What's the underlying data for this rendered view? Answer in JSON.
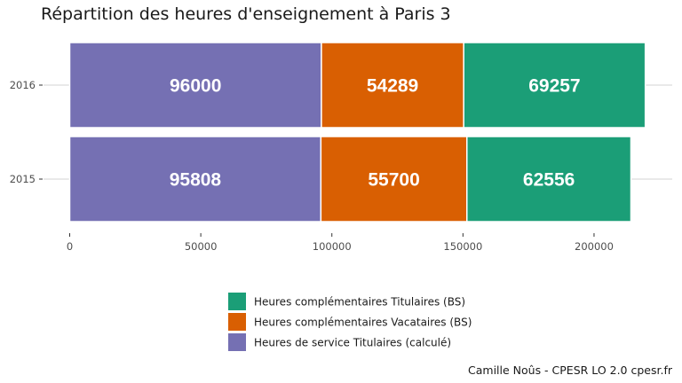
{
  "chart_data": {
    "type": "bar",
    "orientation": "horizontal",
    "stacked": true,
    "title": "Répartition des heures d'enseignement à Paris 3",
    "caption": "Camille Noûs - CPESR LO 2.0 cpesr.fr",
    "categories": [
      "2016",
      "2015"
    ],
    "xlim": [
      0,
      230000
    ],
    "x_ticks": [
      0,
      50000,
      100000,
      150000,
      200000
    ],
    "x_tick_labels": [
      "0",
      "50000",
      "100000",
      "150000",
      "200000"
    ],
    "grid": true,
    "legend_position": "bottom",
    "series": [
      {
        "name": "Heures de service Titulaires (calculé)",
        "color": "#7570B3",
        "values": [
          96000,
          95808
        ],
        "labels": [
          "96000",
          "95808"
        ]
      },
      {
        "name": "Heures complémentaires Vacataires (BS)",
        "color": "#D95F02",
        "values": [
          54289,
          55700
        ],
        "labels": [
          "54289",
          "55700"
        ]
      },
      {
        "name": "Heures complémentaires Titulaires (BS)",
        "color": "#1B9E77",
        "values": [
          69257,
          62556
        ],
        "labels": [
          "69257",
          "62556"
        ]
      }
    ],
    "legend_order": [
      "Heures complémentaires Titulaires (BS)",
      "Heures complémentaires Vacataires (BS)",
      "Heures de service Titulaires (calculé)"
    ]
  }
}
